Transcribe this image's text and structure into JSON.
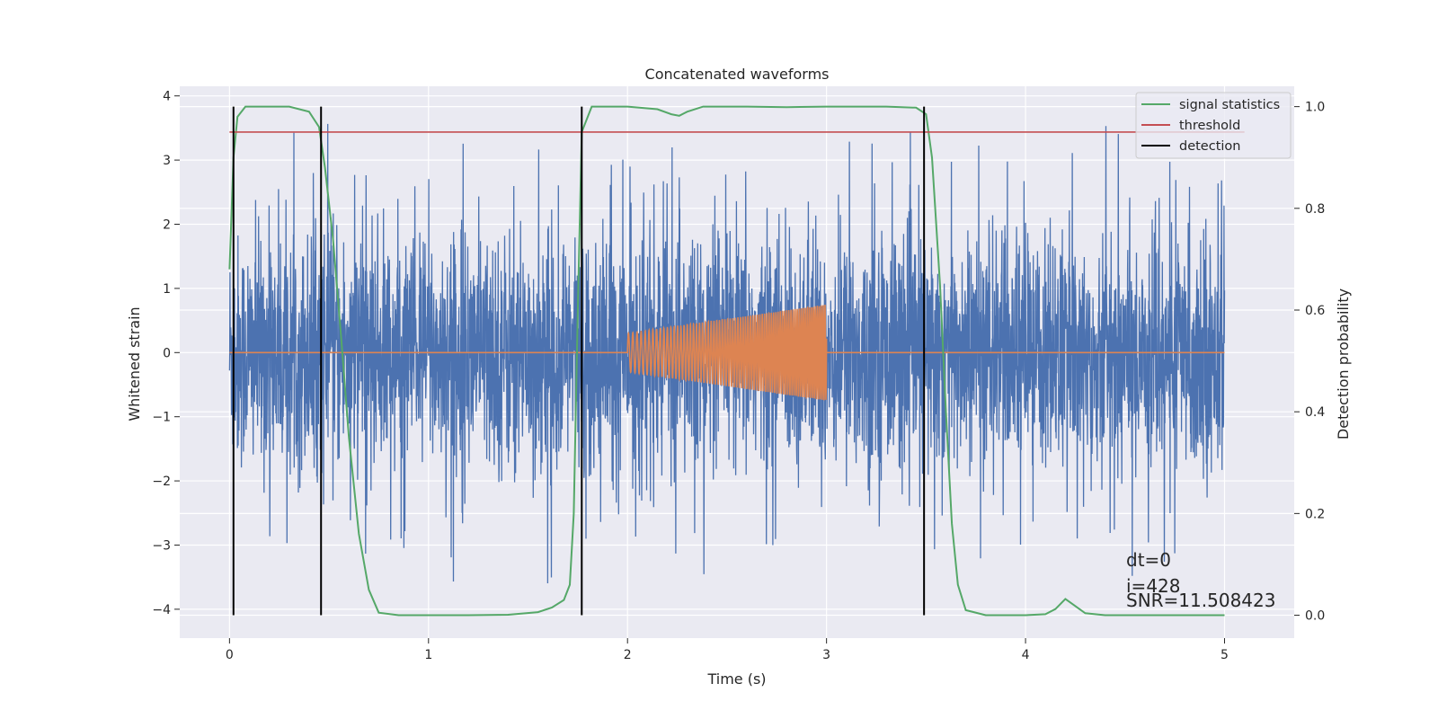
{
  "chart_data": {
    "type": "line",
    "title": "Concatenated waveforms",
    "xlabel": "Time (s)",
    "ylabel": "Whitened strain",
    "y2label": "Detection probability",
    "xlim": [
      -0.25,
      5.35
    ],
    "ylim": [
      -4.45,
      4.15
    ],
    "y2lim": [
      -0.045,
      1.04
    ],
    "x_ticks": [
      0,
      1,
      2,
      3,
      4,
      5
    ],
    "y_ticks": [
      -4,
      -3,
      -2,
      -1,
      0,
      1,
      2,
      3,
      4
    ],
    "y2_ticks": [
      0.0,
      0.2,
      0.4,
      0.6,
      0.8,
      1.0
    ],
    "y2_tick_labels": [
      "0.0",
      "0.2",
      "0.4",
      "0.6",
      "0.8",
      "1.0"
    ],
    "grid": true,
    "legend_position": "top-right",
    "colors": {
      "background": "#eaeaf2",
      "grid": "#ffffff",
      "noise": "#4c72b0",
      "injection": "#dd8452",
      "signal_statistics": "#55a868",
      "threshold": "#c44e52",
      "detection": "#000000"
    },
    "series": [
      {
        "name": "signal statistics",
        "axis": "right",
        "x": [
          0.0,
          0.02,
          0.04,
          0.08,
          0.15,
          0.3,
          0.4,
          0.45,
          0.48,
          0.52,
          0.56,
          0.6,
          0.65,
          0.7,
          0.75,
          0.85,
          1.0,
          1.2,
          1.4,
          1.55,
          1.62,
          1.68,
          1.71,
          1.73,
          1.75,
          1.77,
          1.82,
          2.0,
          2.15,
          2.22,
          2.26,
          2.3,
          2.38,
          2.6,
          2.8,
          3.0,
          3.3,
          3.45,
          3.5,
          3.53,
          3.57,
          3.6,
          3.63,
          3.66,
          3.7,
          3.8,
          4.0,
          4.1,
          4.15,
          4.2,
          4.25,
          4.3,
          4.4,
          4.6,
          5.0
        ],
        "values": [
          0.68,
          0.9,
          0.98,
          1.0,
          1.0,
          1.0,
          0.99,
          0.96,
          0.88,
          0.74,
          0.55,
          0.35,
          0.16,
          0.05,
          0.005,
          0.0,
          0.0,
          0.0,
          0.001,
          0.006,
          0.015,
          0.03,
          0.06,
          0.2,
          0.6,
          0.95,
          1.0,
          1.0,
          0.995,
          0.985,
          0.982,
          0.99,
          1.0,
          1.0,
          0.999,
          1.0,
          1.0,
          0.998,
          0.985,
          0.9,
          0.65,
          0.4,
          0.18,
          0.06,
          0.01,
          0.0,
          0.0,
          0.002,
          0.012,
          0.032,
          0.018,
          0.004,
          0.0,
          0.0,
          0.0
        ]
      },
      {
        "name": "threshold",
        "axis": "right",
        "x": [
          0.0,
          5.1
        ],
        "values": [
          0.95,
          0.95
        ]
      },
      {
        "name": "detection",
        "axis": "right",
        "type": "vlines",
        "x": [
          0.02,
          0.46,
          1.77,
          3.49
        ],
        "range": [
          0.0,
          1.0
        ]
      },
      {
        "axis": "left",
        "x_range": [
          0.0,
          5.0
        ],
        "amplitude_typical": 1.2,
        "peak_max": 3.7,
        "peak_min": -4.1
      },
      {
        "axis": "left",
        "x_range": [
          2.0,
          3.0
        ],
        "amplitude_start": 0.3,
        "amplitude_end": 0.75
      }
    ],
    "annotations": [
      "dt=0",
      "i=428",
      "SNR=11.508423"
    ]
  }
}
